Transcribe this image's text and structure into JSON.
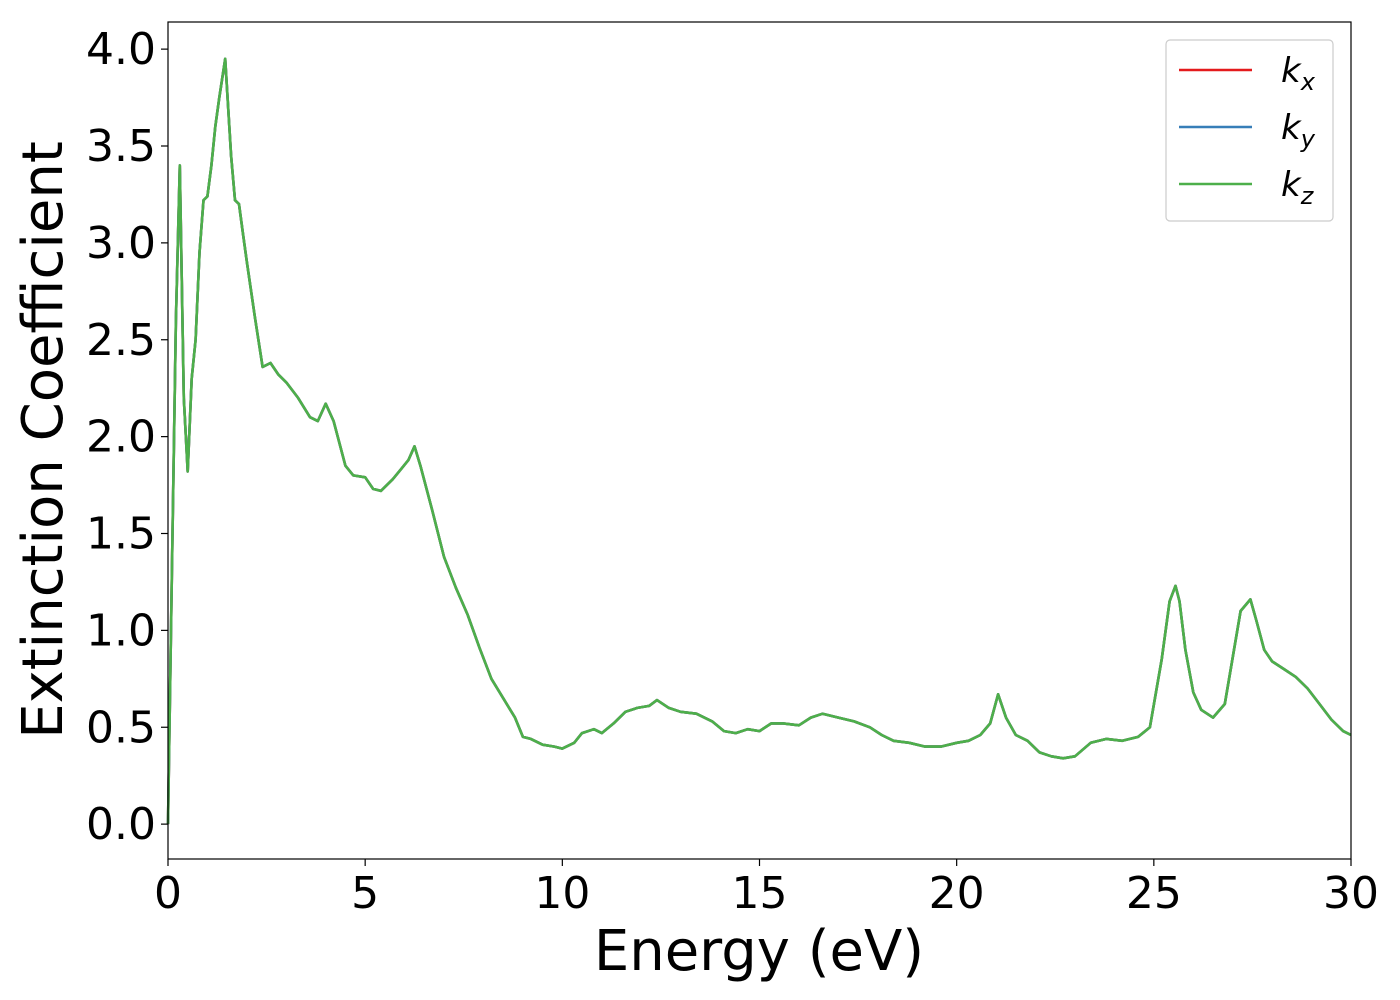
{
  "chart_data": {
    "type": "line",
    "title": "",
    "xlabel": "Energy (eV)",
    "ylabel": "Extinction Coefficient",
    "xlim": [
      0,
      30
    ],
    "ylim": [
      -0.18,
      4.14
    ],
    "xticks": [
      0,
      5,
      10,
      15,
      20,
      25,
      30
    ],
    "xtick_labels": [
      "0",
      "5",
      "10",
      "15",
      "20",
      "25",
      "30"
    ],
    "yticks": [
      0.0,
      0.5,
      1.0,
      1.5,
      2.0,
      2.5,
      3.0,
      3.5,
      4.0
    ],
    "ytick_labels": [
      "0.0",
      "0.5",
      "1.0",
      "1.5",
      "2.0",
      "2.5",
      "3.0",
      "3.5",
      "4.0"
    ],
    "grid": false,
    "legend_position": "top-right",
    "x": [
      0.0,
      0.1,
      0.2,
      0.3,
      0.4,
      0.5,
      0.6,
      0.7,
      0.8,
      0.9,
      1.0,
      1.1,
      1.2,
      1.3,
      1.45,
      1.6,
      1.7,
      1.8,
      1.9,
      2.0,
      2.2,
      2.4,
      2.6,
      2.8,
      3.0,
      3.3,
      3.6,
      3.8,
      4.0,
      4.2,
      4.5,
      4.7,
      5.0,
      5.2,
      5.4,
      5.7,
      5.9,
      6.1,
      6.25,
      6.4,
      6.7,
      7.0,
      7.3,
      7.6,
      7.9,
      8.2,
      8.5,
      8.8,
      9.0,
      9.2,
      9.5,
      9.8,
      10.0,
      10.3,
      10.5,
      10.8,
      11.0,
      11.3,
      11.6,
      11.9,
      12.2,
      12.4,
      12.7,
      13.0,
      13.4,
      13.8,
      14.1,
      14.4,
      14.7,
      15.0,
      15.3,
      15.6,
      16.0,
      16.3,
      16.6,
      17.0,
      17.4,
      17.8,
      18.1,
      18.4,
      18.8,
      19.2,
      19.6,
      20.0,
      20.3,
      20.6,
      20.85,
      21.05,
      21.25,
      21.5,
      21.8,
      22.1,
      22.4,
      22.7,
      23.0,
      23.4,
      23.8,
      24.2,
      24.6,
      24.9,
      25.2,
      25.4,
      25.55,
      25.65,
      25.8,
      26.0,
      26.2,
      26.5,
      26.8,
      27.0,
      27.2,
      27.45,
      27.6,
      27.8,
      28.0,
      28.3,
      28.6,
      28.9,
      29.2,
      29.5,
      29.8,
      30.0
    ],
    "series": [
      {
        "name": "k_x",
        "color": "#e41a1c",
        "values": [
          0.0,
          1.3,
          2.6,
          3.4,
          2.2,
          1.82,
          2.3,
          2.5,
          2.95,
          3.22,
          3.24,
          3.4,
          3.6,
          3.75,
          3.95,
          3.45,
          3.22,
          3.2,
          3.05,
          2.9,
          2.62,
          2.36,
          2.38,
          2.32,
          2.28,
          2.2,
          2.1,
          2.08,
          2.17,
          2.08,
          1.85,
          1.8,
          1.79,
          1.73,
          1.72,
          1.78,
          1.83,
          1.88,
          1.95,
          1.85,
          1.62,
          1.38,
          1.22,
          1.08,
          0.91,
          0.75,
          0.65,
          0.55,
          0.45,
          0.44,
          0.41,
          0.4,
          0.39,
          0.42,
          0.47,
          0.49,
          0.47,
          0.52,
          0.58,
          0.6,
          0.61,
          0.64,
          0.6,
          0.58,
          0.57,
          0.53,
          0.48,
          0.47,
          0.49,
          0.48,
          0.52,
          0.52,
          0.51,
          0.55,
          0.57,
          0.55,
          0.53,
          0.5,
          0.46,
          0.43,
          0.42,
          0.4,
          0.4,
          0.42,
          0.43,
          0.46,
          0.52,
          0.67,
          0.55,
          0.46,
          0.43,
          0.37,
          0.35,
          0.34,
          0.35,
          0.42,
          0.44,
          0.43,
          0.45,
          0.5,
          0.85,
          1.15,
          1.23,
          1.15,
          0.9,
          0.68,
          0.59,
          0.55,
          0.62,
          0.86,
          1.1,
          1.16,
          1.05,
          0.9,
          0.84,
          0.8,
          0.76,
          0.7,
          0.62,
          0.54,
          0.48,
          0.46
        ]
      },
      {
        "name": "k_y",
        "color": "#377eb8",
        "values": [
          0.0,
          1.3,
          2.6,
          3.4,
          2.2,
          1.82,
          2.3,
          2.5,
          2.95,
          3.22,
          3.24,
          3.4,
          3.6,
          3.75,
          3.95,
          3.45,
          3.22,
          3.2,
          3.05,
          2.9,
          2.62,
          2.36,
          2.38,
          2.32,
          2.28,
          2.2,
          2.1,
          2.08,
          2.17,
          2.08,
          1.85,
          1.8,
          1.79,
          1.73,
          1.72,
          1.78,
          1.83,
          1.88,
          1.95,
          1.85,
          1.62,
          1.38,
          1.22,
          1.08,
          0.91,
          0.75,
          0.65,
          0.55,
          0.45,
          0.44,
          0.41,
          0.4,
          0.39,
          0.42,
          0.47,
          0.49,
          0.47,
          0.52,
          0.58,
          0.6,
          0.61,
          0.64,
          0.6,
          0.58,
          0.57,
          0.53,
          0.48,
          0.47,
          0.49,
          0.48,
          0.52,
          0.52,
          0.51,
          0.55,
          0.57,
          0.55,
          0.53,
          0.5,
          0.46,
          0.43,
          0.42,
          0.4,
          0.4,
          0.42,
          0.43,
          0.46,
          0.52,
          0.67,
          0.55,
          0.46,
          0.43,
          0.37,
          0.35,
          0.34,
          0.35,
          0.42,
          0.44,
          0.43,
          0.45,
          0.5,
          0.85,
          1.15,
          1.23,
          1.15,
          0.9,
          0.68,
          0.59,
          0.55,
          0.62,
          0.86,
          1.1,
          1.16,
          1.05,
          0.9,
          0.84,
          0.8,
          0.76,
          0.7,
          0.62,
          0.54,
          0.48,
          0.46
        ]
      },
      {
        "name": "k_z",
        "color": "#4daf4a",
        "values": [
          0.0,
          1.3,
          2.6,
          3.4,
          2.2,
          1.82,
          2.3,
          2.5,
          2.95,
          3.22,
          3.24,
          3.4,
          3.6,
          3.75,
          3.95,
          3.45,
          3.22,
          3.2,
          3.05,
          2.9,
          2.62,
          2.36,
          2.38,
          2.32,
          2.28,
          2.2,
          2.1,
          2.08,
          2.17,
          2.08,
          1.85,
          1.8,
          1.79,
          1.73,
          1.72,
          1.78,
          1.83,
          1.88,
          1.95,
          1.85,
          1.62,
          1.38,
          1.22,
          1.08,
          0.91,
          0.75,
          0.65,
          0.55,
          0.45,
          0.44,
          0.41,
          0.4,
          0.39,
          0.42,
          0.47,
          0.49,
          0.47,
          0.52,
          0.58,
          0.6,
          0.61,
          0.64,
          0.6,
          0.58,
          0.57,
          0.53,
          0.48,
          0.47,
          0.49,
          0.48,
          0.52,
          0.52,
          0.51,
          0.55,
          0.57,
          0.55,
          0.53,
          0.5,
          0.46,
          0.43,
          0.42,
          0.4,
          0.4,
          0.42,
          0.43,
          0.46,
          0.52,
          0.67,
          0.55,
          0.46,
          0.43,
          0.37,
          0.35,
          0.34,
          0.35,
          0.42,
          0.44,
          0.43,
          0.45,
          0.5,
          0.85,
          1.15,
          1.23,
          1.15,
          0.9,
          0.68,
          0.59,
          0.55,
          0.62,
          0.86,
          1.1,
          1.16,
          1.05,
          0.9,
          0.84,
          0.8,
          0.76,
          0.7,
          0.62,
          0.54,
          0.48,
          0.46
        ]
      }
    ],
    "legend": [
      {
        "base": "k",
        "sub": "x",
        "color": "#e41a1c"
      },
      {
        "base": "k",
        "sub": "y",
        "color": "#377eb8"
      },
      {
        "base": "k",
        "sub": "z",
        "color": "#4daf4a"
      }
    ]
  }
}
